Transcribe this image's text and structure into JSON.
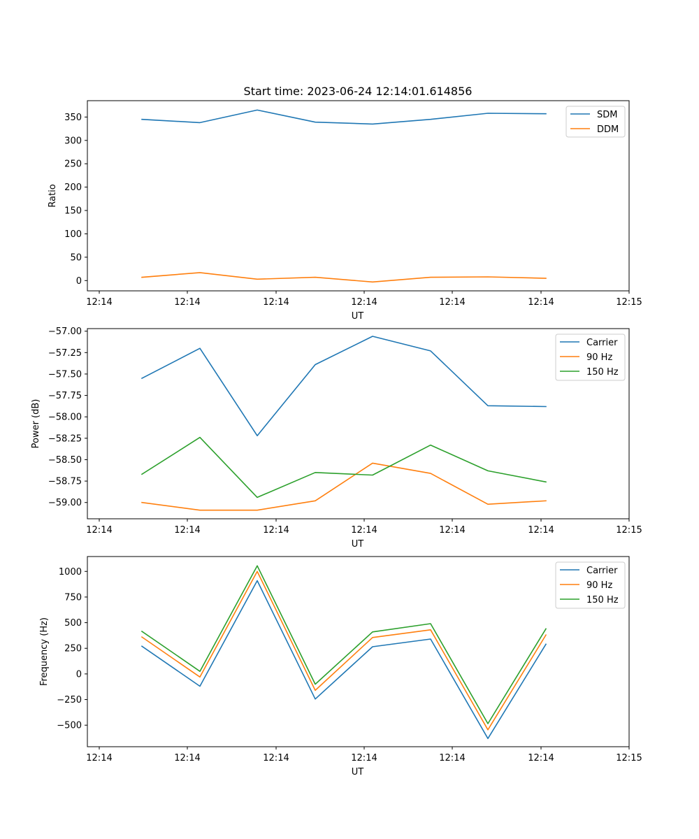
{
  "chart_data": [
    {
      "type": "line",
      "title": "Start time: 2023-06-24 12:14:01.614856",
      "xlabel": "UT",
      "ylabel": "Ratio",
      "x_tick_labels": [
        "12:14",
        "12:14",
        "12:14",
        "12:14",
        "12:14",
        "12:14",
        "12:14",
        "12:15"
      ],
      "y_ticks": [
        0,
        50,
        100,
        150,
        200,
        250,
        300,
        350
      ],
      "y_tick_labels": [
        "0",
        "50",
        "100",
        "150",
        "200",
        "250",
        "300",
        "350"
      ],
      "ylim": [
        -22,
        385
      ],
      "legend_position": "upper right",
      "series": [
        {
          "name": "SDM",
          "color": "#1f77b4",
          "values": [
            345,
            338,
            365,
            339,
            335,
            345,
            358,
            357
          ]
        },
        {
          "name": "DDM",
          "color": "#ff7f0e",
          "values": [
            7,
            17,
            3,
            7,
            -3,
            7,
            8,
            5
          ]
        }
      ]
    },
    {
      "type": "line",
      "title": "",
      "xlabel": "UT",
      "ylabel": "Power (dB)",
      "x_tick_labels": [
        "12:14",
        "12:14",
        "12:14",
        "12:14",
        "12:14",
        "12:14",
        "12:14",
        "12:15"
      ],
      "y_ticks": [
        -59.0,
        -58.75,
        -58.5,
        -58.25,
        -58.0,
        -57.75,
        -57.5,
        -57.25,
        -57.0
      ],
      "y_tick_labels": [
        "−59.00",
        "−58.75",
        "−58.50",
        "−58.25",
        "−58.00",
        "−57.75",
        "−57.50",
        "−57.25",
        "−57.00"
      ],
      "ylim": [
        -59.19,
        -56.97
      ],
      "legend_position": "upper right",
      "series": [
        {
          "name": "Carrier",
          "color": "#1f77b4",
          "values": [
            -57.55,
            -57.2,
            -58.22,
            -57.39,
            -57.06,
            -57.23,
            -57.87,
            -57.88
          ]
        },
        {
          "name": "90 Hz",
          "color": "#ff7f0e",
          "values": [
            -59.0,
            -59.09,
            -59.09,
            -58.98,
            -58.54,
            -58.66,
            -59.02,
            -58.98
          ]
        },
        {
          "name": "150 Hz",
          "color": "#2ca02c",
          "values": [
            -58.67,
            -58.24,
            -58.94,
            -58.65,
            -58.68,
            -58.33,
            -58.63,
            -58.76
          ]
        }
      ]
    },
    {
      "type": "line",
      "title": "",
      "xlabel": "UT",
      "ylabel": "Frequency (Hz)",
      "x_tick_labels": [
        "12:14",
        "12:14",
        "12:14",
        "12:14",
        "12:14",
        "12:14",
        "12:14",
        "12:15"
      ],
      "y_ticks": [
        -500,
        -250,
        0,
        250,
        500,
        750,
        1000
      ],
      "y_tick_labels": [
        "−500",
        "−250",
        "0",
        "250",
        "500",
        "750",
        "1000"
      ],
      "ylim": [
        -710,
        1145
      ],
      "legend_position": "upper right",
      "series": [
        {
          "name": "Carrier",
          "color": "#1f77b4",
          "values": [
            270,
            -120,
            910,
            -245,
            265,
            340,
            -630,
            290
          ]
        },
        {
          "name": "90 Hz",
          "color": "#ff7f0e",
          "values": [
            360,
            -30,
            1000,
            -160,
            355,
            430,
            -545,
            380
          ]
        },
        {
          "name": "150 Hz",
          "color": "#2ca02c",
          "values": [
            415,
            25,
            1055,
            -100,
            410,
            490,
            -485,
            440
          ]
        }
      ]
    }
  ]
}
